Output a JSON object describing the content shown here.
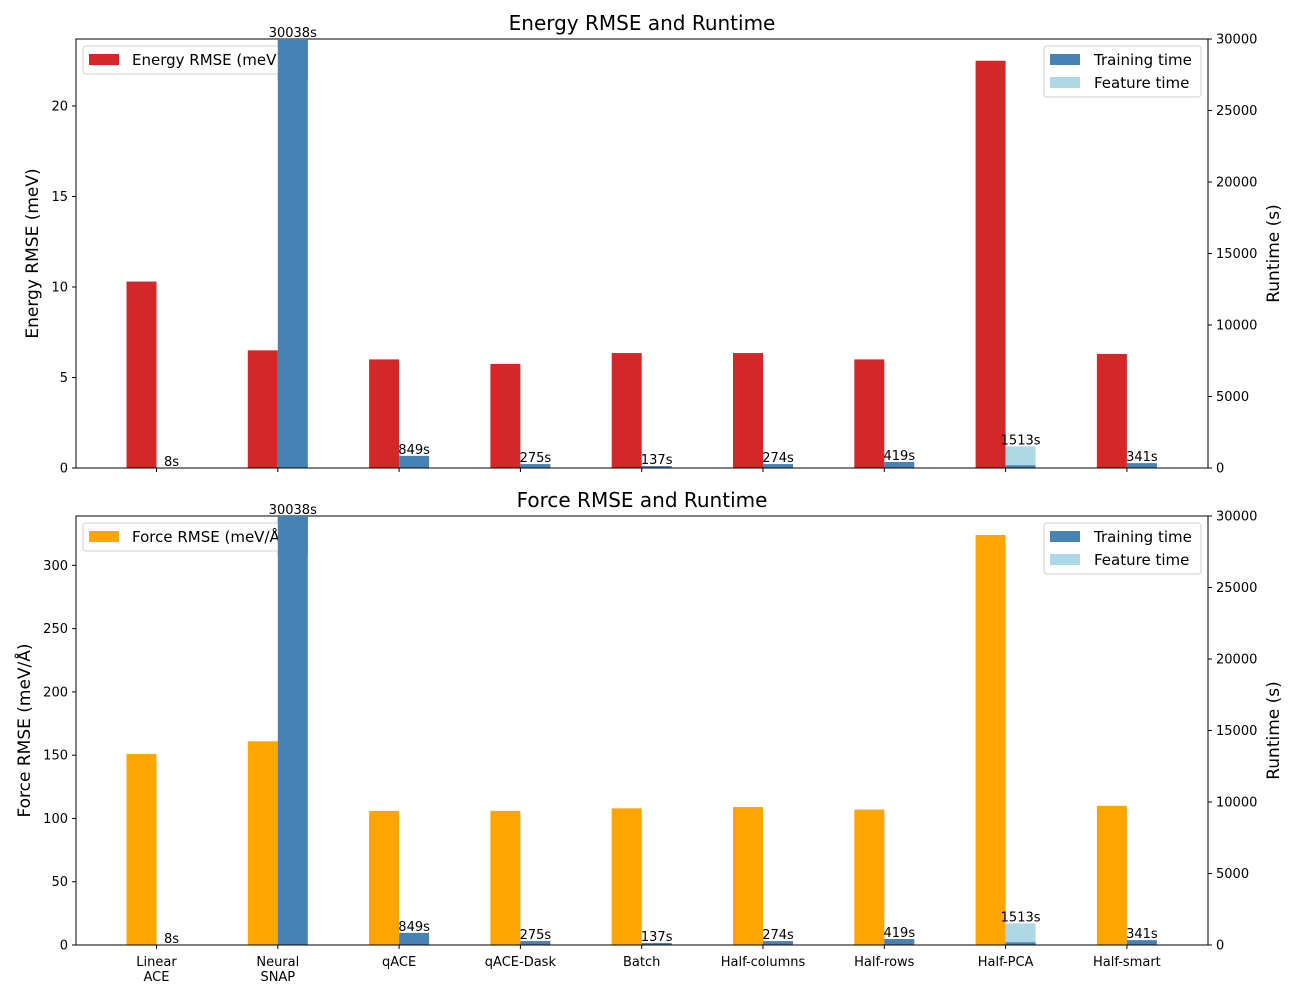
{
  "chart_data": [
    {
      "type": "bar",
      "title": "Energy RMSE and Runtime",
      "categories": [
        "Linear\nACE",
        "Neural\nSNAP",
        "qACE",
        "qACE-Dask",
        "Batch",
        "Half-columns",
        "Half-rows",
        "Half-PCA",
        "Half-smart"
      ],
      "ylabel": "Energy RMSE (meV)",
      "y2label": "Runtime (s)",
      "ylim": [
        0,
        23.7
      ],
      "yticks": [
        0,
        5,
        10,
        15,
        20
      ],
      "y2lim": [
        0,
        30000
      ],
      "y2ticks": [
        0,
        5000,
        10000,
        15000,
        20000,
        25000,
        30000
      ],
      "rmse_series": {
        "name": "Energy RMSE (meV)",
        "color": "#d62728",
        "values": [
          10.3,
          6.5,
          6.0,
          5.75,
          6.35,
          6.35,
          6.0,
          22.5,
          6.3
        ]
      },
      "training_time": {
        "name": "Training time",
        "color": "#4682b4",
        "values": [
          8,
          30038,
          849,
          275,
          137,
          274,
          419,
          200,
          341
        ]
      },
      "feature_time": {
        "name": "Feature time",
        "color": "#add8e6",
        "values": [
          0,
          0,
          0,
          0,
          0,
          0,
          0,
          1313,
          0
        ]
      },
      "runtime_labels": [
        "8s",
        "30038s",
        "849s",
        "275s",
        "137s",
        "274s",
        "419s",
        "1513s",
        "341s"
      ],
      "legend_left": "top-left",
      "legend_right": "top-right",
      "grid": false
    },
    {
      "type": "bar",
      "title": "Force RMSE and Runtime",
      "categories": [
        "Linear\nACE",
        "Neural\nSNAP",
        "qACE",
        "qACE-Dask",
        "Batch",
        "Half-columns",
        "Half-rows",
        "Half-PCA",
        "Half-smart"
      ],
      "ylabel": "Force RMSE (meV/Å)",
      "y2label": "Runtime (s)",
      "ylim": [
        0,
        339
      ],
      "yticks": [
        0,
        50,
        100,
        150,
        200,
        250,
        300
      ],
      "y2lim": [
        0,
        30000
      ],
      "y2ticks": [
        0,
        5000,
        10000,
        15000,
        20000,
        25000,
        30000
      ],
      "rmse_series": {
        "name": "Force RMSE (meV/Å)",
        "color": "#ffa500",
        "values": [
          151,
          161,
          106,
          106,
          108,
          109,
          107,
          324,
          110
        ]
      },
      "training_time": {
        "name": "Training time",
        "color": "#4682b4",
        "values": [
          8,
          30038,
          849,
          275,
          137,
          274,
          419,
          200,
          341
        ]
      },
      "feature_time": {
        "name": "Feature time",
        "color": "#add8e6",
        "values": [
          0,
          0,
          0,
          0,
          0,
          0,
          0,
          1313,
          0
        ]
      },
      "runtime_labels": [
        "8s",
        "30038s",
        "849s",
        "275s",
        "137s",
        "274s",
        "419s",
        "1513s",
        "341s"
      ],
      "legend_left": "top-left",
      "legend_right": "top-right",
      "grid": false
    }
  ]
}
